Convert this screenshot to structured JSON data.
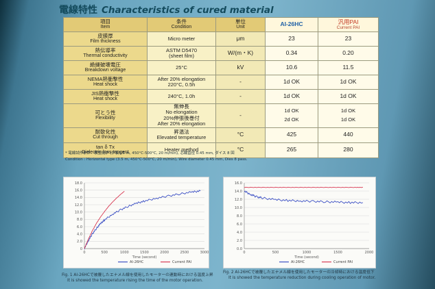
{
  "title": {
    "jp": "電線特性",
    "en": "Characteristics of cured material"
  },
  "table": {
    "header": {
      "item_jp": "項目",
      "item_en": "Item",
      "cond_jp": "条件",
      "cond_en": "Condition",
      "unit_jp": "単位",
      "unit_en": "Unit",
      "col_a": "AI-26HC",
      "col_b_jp": "汎用PAI",
      "col_b_en": "Current PAI"
    },
    "rows": [
      {
        "item_jp": "皮膜厚",
        "item_en": "Film thickness",
        "cond1": "Micro meter",
        "cond2": "",
        "unit": "μm",
        "a": "23",
        "a2": "",
        "b": "23",
        "b2": ""
      },
      {
        "item_jp": "熱伝導率",
        "item_en": "Thermal conductivity",
        "cond1": "ASTM D5470",
        "cond2": "(sheet film)",
        "unit": "W/(m・K)",
        "a": "0.34",
        "a2": "",
        "b": "0.20",
        "b2": ""
      },
      {
        "item_jp": "絶縁破壊電圧",
        "item_en": "Breakdown voltage",
        "cond1": "25°C",
        "cond2": "",
        "unit": "kV",
        "a": "10.6",
        "a2": "",
        "b": "11.5",
        "b2": ""
      },
      {
        "item_jp": "NEMA熱衝撃性",
        "item_en": "Heat shock",
        "cond1": "After 20% elongation",
        "cond2": "220°C, 0.5h",
        "unit": "-",
        "a": "1d OK",
        "a2": "",
        "b": "1d OK",
        "b2": ""
      },
      {
        "item_jp": "JIS熱衝撃性",
        "item_en": "Heat shock",
        "cond1": "240°C, 1.0h",
        "cond2": "",
        "unit": "-",
        "a": "1d OK",
        "a2": "",
        "b": "1d OK",
        "b2": ""
      },
      {
        "item_jp": "可とう性",
        "item_en": "Flexibility",
        "cond1": "無伸長",
        "cond2": "No elongation",
        "cond3": "20%伸張後巻付",
        "cond4": "After 20% elongation",
        "unit": "-",
        "a": "1d OK",
        "a2": "2d OK",
        "b": "1d OK",
        "b2": "1d OK"
      },
      {
        "item_jp": "耐軟化性",
        "item_en": "Cut through",
        "cond1": "昇温法",
        "cond2": "Elevated temperature",
        "unit": "°C",
        "a": "425",
        "a2": "",
        "b": "440",
        "b2": ""
      },
      {
        "item_jp": "tan δ Tx",
        "item_en": "Dielectric loss tangent",
        "cond1": "Heater method",
        "cond2": "",
        "unit": "°C",
        "a": "265",
        "a2": "",
        "b": "280",
        "b2": ""
      }
    ]
  },
  "note": {
    "line1": "* 電線試作条件：横型焼炉 (炉長3.5 m, 450°C-500°C, 20 m/min), 芯線直径 0.45 mm, ダイス 8 回",
    "line2": "Condition : Horizontal type (3.5 m, 450°C-500°C, 20 m/min), Wire diameter 0.45 mm, Dies 8 pass."
  },
  "fig1": {
    "caption_jp": "Fig. 1 AI-26HCで被覆したエナメル線を使用したモーターの連動時における温度上昇",
    "caption_en": "It is showed the temperature rising the time of the motor operation.",
    "legend": [
      {
        "name": "AI-26HC",
        "color": "#3b4fc4"
      },
      {
        "name": "Current PAI",
        "color": "#d83a54"
      }
    ],
    "xlabel": "Time (second)",
    "xticks": [
      "0",
      "500",
      "1000",
      "1500",
      "2000",
      "2500",
      "3000"
    ],
    "yticks": [
      "0",
      "2.0",
      "4.0",
      "6.0",
      "8.0",
      "10.0",
      "12.0",
      "14.0",
      "16.0",
      "18.0"
    ]
  },
  "fig2": {
    "caption_jp": "Fig. 2 AI-26HCで被覆したエナメル線を使用したモーターの冷却時における温度低下",
    "caption_en": "It is showed the temperature reduction during cooling operation of motor.",
    "legend": [
      {
        "name": "AI-26HC",
        "color": "#3b4fc4"
      },
      {
        "name": "Current PAI",
        "color": "#d83a54"
      }
    ],
    "xlabel": "Time (second)",
    "xticks": [
      "0",
      "500",
      "1000",
      "1500",
      "2000"
    ],
    "yticks": [
      "0.0",
      "2.0",
      "4.0",
      "6.0",
      "8.0",
      "10.0",
      "12.0",
      "14.0",
      "16.0"
    ]
  },
  "chart_data": [
    {
      "type": "line",
      "title": "",
      "xlabel": "Time (second)",
      "ylabel": "",
      "xlim": [
        0,
        3000
      ],
      "ylim": [
        0,
        18
      ],
      "series": [
        {
          "name": "AI-26HC",
          "color": "#3b4fc4",
          "x": [
            0,
            100,
            200,
            300,
            400,
            500,
            700,
            900,
            1100,
            1300,
            1500,
            1800,
            2100,
            2400,
            2700,
            2900
          ],
          "y": [
            0,
            2.2,
            4.0,
            5.5,
            6.8,
            7.8,
            9.4,
            10.6,
            11.6,
            12.4,
            13.0,
            13.8,
            14.4,
            15.0,
            15.5,
            15.8
          ]
        },
        {
          "name": "Current PAI",
          "color": "#d83a54",
          "x": [
            0,
            100,
            200,
            300,
            400,
            500,
            600,
            700,
            800,
            900,
            1000
          ],
          "y": [
            0,
            2.6,
            4.9,
            6.9,
            8.6,
            10.1,
            11.5,
            12.7,
            13.8,
            14.8,
            15.7
          ]
        }
      ],
      "grid": true,
      "legend": "bottom"
    },
    {
      "type": "line",
      "title": "",
      "xlabel": "Time (second)",
      "ylabel": "",
      "xlim": [
        0,
        2000
      ],
      "ylim": [
        0,
        16
      ],
      "series": [
        {
          "name": "AI-26HC",
          "color": "#3b4fc4",
          "x": [
            0,
            100,
            200,
            300,
            500,
            700,
            900,
            1100,
            1300,
            1500,
            1700,
            1900
          ],
          "y": [
            14.0,
            13.2,
            12.6,
            12.3,
            11.9,
            11.7,
            11.6,
            11.5,
            11.4,
            11.3,
            11.2,
            11.2
          ]
        },
        {
          "name": "Current PAI",
          "color": "#d83a54",
          "x": [
            0,
            200,
            400,
            600,
            800,
            1000,
            1200,
            1400,
            1600,
            1800,
            1900
          ],
          "y": [
            14.9,
            14.9,
            14.9,
            14.9,
            14.9,
            14.9,
            14.9,
            14.9,
            14.9,
            14.9,
            14.9
          ]
        }
      ],
      "grid": true,
      "legend": "bottom"
    }
  ]
}
